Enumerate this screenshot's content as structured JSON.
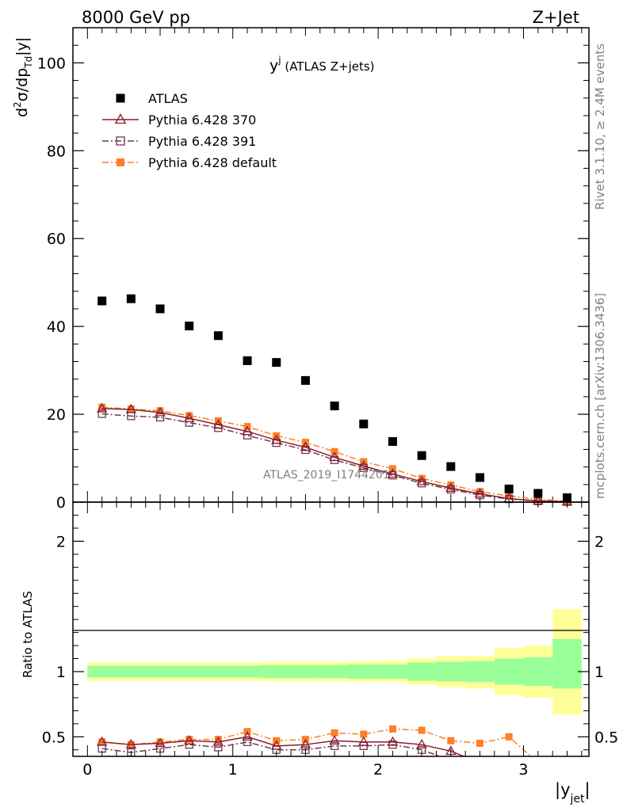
{
  "header": {
    "left": "8000 GeV pp",
    "right": "Z+Jet"
  },
  "side_labels": {
    "top": "Rivet 3.1.10, ≥ 2.4M events",
    "bottom": "mcplots.cern.ch [arXiv:1306.3436]"
  },
  "watermark": "ATLAS_2019_I1744201",
  "chart_data": [
    {
      "type": "scatter",
      "title_main": "y",
      "title_sup": "j",
      "title_rest": " (ATLAS Z+jets)",
      "ylabel_parts": [
        "d",
        "2",
        "σ/dp",
        "Td",
        "|y|"
      ],
      "xlim": [
        -0.1,
        3.45
      ],
      "ylim": [
        0,
        108
      ],
      "x_ticks": [
        0,
        1,
        2,
        3
      ],
      "y_ticks": [
        0,
        20,
        40,
        60,
        80,
        100
      ],
      "y_tick_labels": [
        "0",
        "20",
        "40",
        "60",
        "80",
        "100"
      ],
      "legend_position": "top-left",
      "x": [
        0.1,
        0.3,
        0.5,
        0.7,
        0.9,
        1.1,
        1.3,
        1.5,
        1.7,
        1.9,
        2.1,
        2.3,
        2.5,
        2.7,
        2.9,
        3.1,
        3.3
      ],
      "series": [
        {
          "name": "ATLAS",
          "color": "#000000",
          "marker": "square-filled",
          "line": "none",
          "values": [
            45.8,
            46.3,
            44.0,
            40.1,
            37.9,
            32.2,
            31.8,
            27.7,
            21.9,
            17.8,
            13.8,
            10.6,
            8.1,
            5.6,
            3.0,
            2.0,
            1.0
          ]
        },
        {
          "name": "Pythia 6.428 370",
          "color": "#8b1a2b",
          "marker": "triangle-open",
          "line": "solid",
          "values": [
            21.3,
            21.1,
            20.4,
            19.1,
            17.6,
            16.1,
            14.1,
            12.5,
            10.2,
            8.2,
            6.4,
            4.7,
            3.2,
            1.9,
            0.8,
            0.3,
            0.1
          ]
        },
        {
          "name": "Pythia 6.428 391",
          "color": "#6e3a4f",
          "marker": "square-open",
          "line": "dashdot",
          "values": [
            20.1,
            19.6,
            19.3,
            18.1,
            16.9,
            15.2,
            13.5,
            11.9,
            9.6,
            7.8,
            6.1,
            4.3,
            2.9,
            1.6,
            0.7,
            0.25,
            0.08
          ]
        },
        {
          "name": "Pythia 6.428 default",
          "color": "#ff7f27",
          "marker": "square-filled",
          "line": "dashdot",
          "values": [
            21.6,
            21.2,
            20.8,
            19.7,
            18.5,
            17.2,
            15.1,
            13.6,
            11.5,
            9.2,
            7.6,
            5.4,
            3.9,
            2.4,
            1.4,
            0.7,
            0.2
          ]
        }
      ]
    },
    {
      "type": "line",
      "ylabel": "Ratio to ATLAS",
      "xlabel_main": "|y",
      "xlabel_sub": "jet",
      "xlabel_end": "|",
      "xlim": [
        -0.1,
        3.45
      ],
      "ylim": [
        0.35,
        2.3
      ],
      "x_ticks": [
        0,
        1,
        2,
        3
      ],
      "x_tick_labels": [
        "0",
        "1",
        "2",
        "3"
      ],
      "y_ticks": [
        0.5,
        1,
        2
      ],
      "y_tick_labels": [
        "0.5",
        "1",
        "2"
      ],
      "band_edges": [
        0.0,
        0.2,
        0.4,
        0.6,
        0.8,
        1.0,
        1.2,
        1.4,
        1.6,
        1.8,
        2.0,
        2.2,
        2.4,
        2.6,
        2.8,
        3.0,
        3.2,
        3.4
      ],
      "band_inner": [
        [
          0.955,
          1.045
        ],
        [
          0.955,
          1.045
        ],
        [
          0.955,
          1.045
        ],
        [
          0.955,
          1.045
        ],
        [
          0.955,
          1.045
        ],
        [
          0.955,
          1.045
        ],
        [
          0.95,
          1.05
        ],
        [
          0.95,
          1.05
        ],
        [
          0.95,
          1.05
        ],
        [
          0.945,
          1.055
        ],
        [
          0.945,
          1.055
        ],
        [
          0.93,
          1.07
        ],
        [
          0.925,
          1.075
        ],
        [
          0.92,
          1.08
        ],
        [
          0.9,
          1.1
        ],
        [
          0.89,
          1.11
        ],
        [
          0.87,
          1.25
        ]
      ],
      "band_outer": [
        [
          0.93,
          1.07
        ],
        [
          0.93,
          1.07
        ],
        [
          0.93,
          1.07
        ],
        [
          0.93,
          1.07
        ],
        [
          0.93,
          1.07
        ],
        [
          0.93,
          1.07
        ],
        [
          0.925,
          1.075
        ],
        [
          0.925,
          1.075
        ],
        [
          0.925,
          1.075
        ],
        [
          0.92,
          1.08
        ],
        [
          0.92,
          1.085
        ],
        [
          0.9,
          1.1
        ],
        [
          0.88,
          1.12
        ],
        [
          0.87,
          1.12
        ],
        [
          0.82,
          1.18
        ],
        [
          0.8,
          1.2
        ],
        [
          0.67,
          1.48
        ]
      ],
      "x": [
        0.1,
        0.3,
        0.5,
        0.7,
        0.9,
        1.1,
        1.3,
        1.5,
        1.7,
        1.9,
        2.1,
        2.3,
        2.5,
        2.7,
        2.9,
        3.1
      ],
      "series": [
        {
          "name": "Pythia 6.428 370",
          "color": "#8b1a2b",
          "marker": "triangle-open",
          "line": "solid",
          "values": [
            0.46,
            0.44,
            0.45,
            0.47,
            0.46,
            0.5,
            0.43,
            0.44,
            0.47,
            0.46,
            0.46,
            0.44,
            0.39,
            0.3,
            null,
            null
          ]
        },
        {
          "name": "Pythia 6.428 391",
          "color": "#6e3a4f",
          "marker": "square-open",
          "line": "dashdot",
          "values": [
            0.41,
            0.38,
            0.41,
            0.44,
            0.42,
            0.46,
            0.4,
            0.4,
            0.43,
            0.43,
            0.44,
            0.4,
            0.32,
            null,
            null,
            null
          ]
        },
        {
          "name": "Pythia 6.428 default",
          "color": "#ff7f27",
          "marker": "square-filled",
          "line": "dashdot",
          "values": [
            0.46,
            0.44,
            0.46,
            0.48,
            0.48,
            0.54,
            0.47,
            0.48,
            0.53,
            0.52,
            0.56,
            0.55,
            0.47,
            0.45,
            0.5,
            0.3
          ]
        }
      ]
    }
  ]
}
